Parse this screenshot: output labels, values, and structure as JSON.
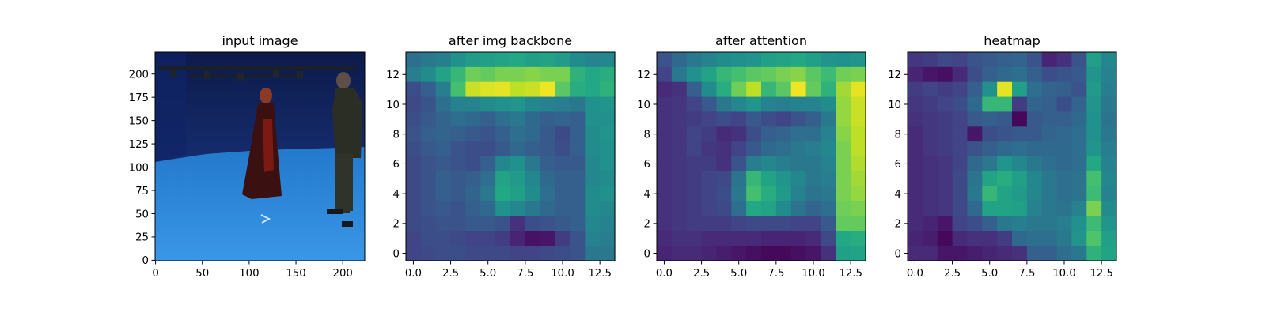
{
  "chart_data": [
    {
      "type": "image",
      "title": "input image",
      "x_ticks": [
        "0",
        "50",
        "100",
        "150",
        "200"
      ],
      "y_ticks": [
        "0",
        "25",
        "50",
        "75",
        "100",
        "125",
        "150",
        "175",
        "200"
      ],
      "xlim": [
        -0.5,
        223.5
      ],
      "ylim": [
        223.5,
        -0.5
      ],
      "description_colors": {
        "wall": "#142a6e",
        "floor": "#2e86d6"
      }
    },
    {
      "type": "heatmap",
      "title": "after img backbone",
      "colormap": "viridis",
      "x_ticks": [
        "0.0",
        "2.5",
        "5.0",
        "7.5",
        "10.0",
        "12.5"
      ],
      "y_ticks": [
        "0",
        "2",
        "4",
        "6",
        "8",
        "10",
        "12"
      ],
      "xlim": [
        -0.5,
        13.5
      ],
      "ylim": [
        13.5,
        -0.5
      ],
      "values": [
        [
          0.36,
          0.4,
          0.43,
          0.5,
          0.55,
          0.56,
          0.58,
          0.6,
          0.56,
          0.58,
          0.55,
          0.48,
          0.45,
          0.46
        ],
        [
          0.42,
          0.48,
          0.58,
          0.66,
          0.78,
          0.76,
          0.8,
          0.8,
          0.82,
          0.8,
          0.8,
          0.64,
          0.6,
          0.62
        ],
        [
          0.24,
          0.3,
          0.42,
          0.7,
          0.92,
          0.95,
          0.96,
          0.9,
          0.92,
          0.98,
          0.74,
          0.62,
          0.6,
          0.64
        ],
        [
          0.22,
          0.26,
          0.36,
          0.44,
          0.44,
          0.48,
          0.5,
          0.52,
          0.46,
          0.44,
          0.42,
          0.4,
          0.5,
          0.52
        ],
        [
          0.24,
          0.28,
          0.32,
          0.36,
          0.34,
          0.3,
          0.36,
          0.4,
          0.34,
          0.3,
          0.32,
          0.3,
          0.5,
          0.5
        ],
        [
          0.26,
          0.3,
          0.32,
          0.3,
          0.28,
          0.26,
          0.3,
          0.36,
          0.34,
          0.28,
          0.22,
          0.3,
          0.48,
          0.52
        ],
        [
          0.24,
          0.28,
          0.3,
          0.26,
          0.24,
          0.24,
          0.28,
          0.34,
          0.3,
          0.28,
          0.24,
          0.3,
          0.48,
          0.5
        ],
        [
          0.22,
          0.26,
          0.28,
          0.26,
          0.24,
          0.3,
          0.46,
          0.5,
          0.4,
          0.3,
          0.28,
          0.28,
          0.46,
          0.5
        ],
        [
          0.22,
          0.26,
          0.3,
          0.28,
          0.3,
          0.36,
          0.58,
          0.54,
          0.46,
          0.34,
          0.3,
          0.3,
          0.46,
          0.48
        ],
        [
          0.22,
          0.26,
          0.3,
          0.28,
          0.32,
          0.4,
          0.6,
          0.56,
          0.48,
          0.36,
          0.3,
          0.3,
          0.48,
          0.5
        ],
        [
          0.22,
          0.26,
          0.28,
          0.26,
          0.3,
          0.34,
          0.5,
          0.46,
          0.4,
          0.34,
          0.3,
          0.3,
          0.48,
          0.46
        ],
        [
          0.22,
          0.24,
          0.26,
          0.26,
          0.28,
          0.28,
          0.26,
          0.14,
          0.24,
          0.26,
          0.28,
          0.3,
          0.46,
          0.44
        ],
        [
          0.2,
          0.24,
          0.24,
          0.22,
          0.2,
          0.2,
          0.18,
          0.1,
          0.05,
          0.06,
          0.18,
          0.26,
          0.44,
          0.42
        ],
        [
          0.2,
          0.22,
          0.24,
          0.24,
          0.22,
          0.22,
          0.22,
          0.2,
          0.2,
          0.22,
          0.24,
          0.26,
          0.4,
          0.4
        ]
      ]
    },
    {
      "type": "heatmap",
      "title": "after attention",
      "colormap": "viridis",
      "x_ticks": [
        "0.0",
        "2.5",
        "5.0",
        "7.5",
        "10.0",
        "12.5"
      ],
      "y_ticks": [
        "0",
        "2",
        "4",
        "6",
        "8",
        "10",
        "12"
      ],
      "xlim": [
        -0.5,
        13.5
      ],
      "ylim": [
        13.5,
        -0.5
      ],
      "values": [
        [
          0.26,
          0.34,
          0.4,
          0.44,
          0.48,
          0.5,
          0.52,
          0.56,
          0.58,
          0.6,
          0.56,
          0.52,
          0.5,
          0.52
        ],
        [
          0.2,
          0.4,
          0.5,
          0.58,
          0.66,
          0.7,
          0.74,
          0.76,
          0.8,
          0.82,
          0.74,
          0.68,
          0.78,
          0.8
        ],
        [
          0.12,
          0.14,
          0.3,
          0.48,
          0.62,
          0.78,
          0.9,
          0.66,
          0.74,
          0.98,
          0.76,
          0.64,
          0.86,
          0.96
        ],
        [
          0.14,
          0.16,
          0.2,
          0.28,
          0.4,
          0.46,
          0.52,
          0.44,
          0.42,
          0.44,
          0.44,
          0.48,
          0.84,
          0.92
        ],
        [
          0.14,
          0.16,
          0.18,
          0.2,
          0.24,
          0.2,
          0.28,
          0.24,
          0.2,
          0.26,
          0.3,
          0.4,
          0.84,
          0.92
        ],
        [
          0.14,
          0.16,
          0.2,
          0.18,
          0.12,
          0.14,
          0.24,
          0.3,
          0.32,
          0.36,
          0.36,
          0.44,
          0.82,
          0.9
        ],
        [
          0.14,
          0.16,
          0.2,
          0.16,
          0.14,
          0.2,
          0.28,
          0.34,
          0.36,
          0.4,
          0.42,
          0.46,
          0.8,
          0.9
        ],
        [
          0.14,
          0.16,
          0.18,
          0.18,
          0.14,
          0.26,
          0.42,
          0.46,
          0.42,
          0.4,
          0.4,
          0.44,
          0.8,
          0.88
        ],
        [
          0.14,
          0.16,
          0.18,
          0.2,
          0.22,
          0.38,
          0.66,
          0.58,
          0.52,
          0.46,
          0.4,
          0.42,
          0.8,
          0.86
        ],
        [
          0.14,
          0.16,
          0.18,
          0.2,
          0.24,
          0.4,
          0.7,
          0.62,
          0.54,
          0.44,
          0.38,
          0.4,
          0.8,
          0.84
        ],
        [
          0.14,
          0.16,
          0.18,
          0.2,
          0.22,
          0.36,
          0.6,
          0.58,
          0.48,
          0.38,
          0.32,
          0.36,
          0.78,
          0.8
        ],
        [
          0.14,
          0.16,
          0.18,
          0.18,
          0.18,
          0.2,
          0.22,
          0.22,
          0.22,
          0.2,
          0.2,
          0.28,
          0.76,
          0.76
        ],
        [
          0.12,
          0.14,
          0.14,
          0.12,
          0.12,
          0.12,
          0.12,
          0.1,
          0.1,
          0.1,
          0.12,
          0.22,
          0.6,
          0.62
        ],
        [
          0.1,
          0.12,
          0.12,
          0.1,
          0.08,
          0.06,
          0.04,
          0.02,
          0.02,
          0.04,
          0.06,
          0.14,
          0.56,
          0.58
        ]
      ]
    },
    {
      "type": "heatmap",
      "title": "heatmap",
      "colormap": "viridis",
      "x_ticks": [
        "0.0",
        "2.5",
        "5.0",
        "7.5",
        "10.0",
        "12.5"
      ],
      "y_ticks": [
        "0",
        "2",
        "4",
        "6",
        "8",
        "10",
        "12"
      ],
      "xlim": [
        -0.5,
        13.5
      ],
      "ylim": [
        13.5,
        -0.5
      ],
      "values": [
        [
          0.16,
          0.18,
          0.22,
          0.2,
          0.26,
          0.28,
          0.3,
          0.32,
          0.26,
          0.1,
          0.14,
          0.26,
          0.56,
          0.46
        ],
        [
          0.1,
          0.06,
          0.04,
          0.12,
          0.24,
          0.3,
          0.34,
          0.36,
          0.3,
          0.24,
          0.26,
          0.28,
          0.52,
          0.44
        ],
        [
          0.18,
          0.2,
          0.18,
          0.2,
          0.3,
          0.5,
          0.96,
          0.56,
          0.36,
          0.32,
          0.3,
          0.26,
          0.54,
          0.42
        ],
        [
          0.16,
          0.18,
          0.2,
          0.24,
          0.34,
          0.66,
          0.66,
          0.18,
          0.32,
          0.3,
          0.24,
          0.32,
          0.52,
          0.4
        ],
        [
          0.14,
          0.16,
          0.18,
          0.2,
          0.28,
          0.3,
          0.28,
          0.02,
          0.28,
          0.3,
          0.3,
          0.34,
          0.5,
          0.38
        ],
        [
          0.12,
          0.16,
          0.18,
          0.2,
          0.06,
          0.24,
          0.26,
          0.28,
          0.28,
          0.32,
          0.34,
          0.36,
          0.5,
          0.4
        ],
        [
          0.12,
          0.16,
          0.18,
          0.2,
          0.26,
          0.3,
          0.34,
          0.36,
          0.34,
          0.34,
          0.34,
          0.36,
          0.52,
          0.42
        ],
        [
          0.12,
          0.14,
          0.16,
          0.2,
          0.34,
          0.4,
          0.52,
          0.46,
          0.4,
          0.36,
          0.34,
          0.36,
          0.6,
          0.44
        ],
        [
          0.12,
          0.14,
          0.16,
          0.22,
          0.38,
          0.58,
          0.62,
          0.56,
          0.46,
          0.4,
          0.36,
          0.38,
          0.7,
          0.46
        ],
        [
          0.12,
          0.14,
          0.16,
          0.22,
          0.4,
          0.66,
          0.58,
          0.54,
          0.46,
          0.4,
          0.36,
          0.38,
          0.68,
          0.44
        ],
        [
          0.12,
          0.14,
          0.16,
          0.22,
          0.34,
          0.58,
          0.58,
          0.56,
          0.44,
          0.4,
          0.38,
          0.44,
          0.8,
          0.48
        ],
        [
          0.12,
          0.1,
          0.06,
          0.2,
          0.24,
          0.3,
          0.4,
          0.42,
          0.4,
          0.4,
          0.42,
          0.5,
          0.68,
          0.52
        ],
        [
          0.1,
          0.08,
          0.02,
          0.12,
          0.14,
          0.14,
          0.18,
          0.34,
          0.36,
          0.36,
          0.4,
          0.52,
          0.72,
          0.56
        ],
        [
          0.12,
          0.12,
          0.06,
          0.06,
          0.08,
          0.1,
          0.12,
          0.14,
          0.3,
          0.3,
          0.36,
          0.4,
          0.64,
          0.58
        ]
      ]
    }
  ]
}
